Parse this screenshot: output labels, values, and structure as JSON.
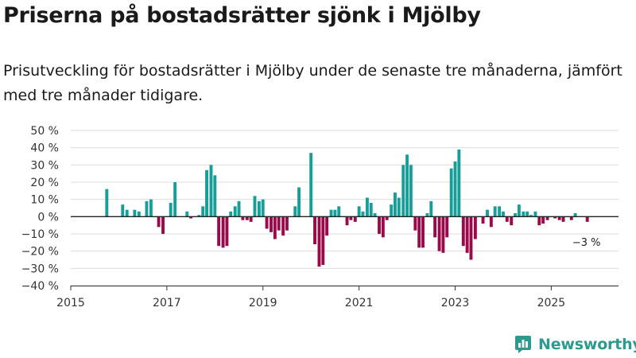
{
  "header": {
    "title": "Priserna på bostadsrätter sjönk i Mjölby",
    "subtitle": "Prisutveckling för bostadsrätter i Mjölby under de senaste tre månaderna, jämfört med tre månader tidigare."
  },
  "brand": {
    "name": "Newsworthy"
  },
  "colors": {
    "positive": "#189e98",
    "negative": "#9a0a4a",
    "zero_line": "#222222",
    "grid": "#dddddd"
  },
  "chart_data": {
    "type": "bar",
    "title": "Priserna på bostadsrätter sjönk i Mjölby",
    "ylabel": "",
    "xlabel": "",
    "ylim": [
      -40,
      50
    ],
    "y_ticks": [
      -40,
      -30,
      -20,
      -10,
      0,
      10,
      20,
      30,
      40,
      50
    ],
    "y_tick_labels": [
      "−40 %",
      "−30 %",
      "−20 %",
      "−10 %",
      "0 %",
      "10 %",
      "20 %",
      "30 %",
      "40 %",
      "50 %"
    ],
    "x_ticks": [
      2015,
      2017,
      2019,
      2021,
      2023,
      2025
    ],
    "x_tick_labels": [
      "2015",
      "2017",
      "2019",
      "2021",
      "2023",
      "2025"
    ],
    "x_range": [
      2015.0,
      2026.4
    ],
    "annotation": {
      "text": "−3 %",
      "x": 2025.75,
      "y": -3
    },
    "series": [
      {
        "name": "Prisutveckling",
        "x": [
          2015.75,
          2015.83,
          2015.92,
          2016.0,
          2016.08,
          2016.17,
          2016.25,
          2016.33,
          2016.42,
          2016.5,
          2016.58,
          2016.67,
          2016.75,
          2016.83,
          2016.92,
          2017.0,
          2017.08,
          2017.17,
          2017.25,
          2017.33,
          2017.42,
          2017.5,
          2017.58,
          2017.67,
          2017.75,
          2017.83,
          2017.92,
          2018.0,
          2018.08,
          2018.17,
          2018.25,
          2018.33,
          2018.42,
          2018.5,
          2018.58,
          2018.67,
          2018.75,
          2018.83,
          2018.92,
          2019.0,
          2019.08,
          2019.17,
          2019.25,
          2019.33,
          2019.42,
          2019.5,
          2019.58,
          2019.67,
          2019.75,
          2019.83,
          2019.92,
          2020.0,
          2020.08,
          2020.17,
          2020.25,
          2020.33,
          2020.42,
          2020.5,
          2020.58,
          2020.67,
          2020.75,
          2020.83,
          2020.92,
          2021.0,
          2021.08,
          2021.17,
          2021.25,
          2021.33,
          2021.42,
          2021.5,
          2021.58,
          2021.67,
          2021.75,
          2021.83,
          2021.92,
          2022.0,
          2022.08,
          2022.17,
          2022.25,
          2022.33,
          2022.42,
          2022.5,
          2022.58,
          2022.67,
          2022.75,
          2022.83,
          2022.92,
          2023.0,
          2023.08,
          2023.17,
          2023.25,
          2023.33,
          2023.42,
          2023.5,
          2023.58,
          2023.67,
          2023.75,
          2023.83,
          2023.92,
          2024.0,
          2024.08,
          2024.17,
          2024.25,
          2024.33,
          2024.42,
          2024.5,
          2024.58,
          2024.67,
          2024.75,
          2024.83,
          2024.92,
          2025.0,
          2025.08,
          2025.17,
          2025.25,
          2025.33,
          2025.42,
          2025.5,
          2025.58,
          2025.67,
          2025.75
        ],
        "values": [
          16,
          0,
          0,
          0,
          7,
          4,
          0,
          4,
          3,
          0,
          9,
          10,
          0,
          -6,
          -10,
          0,
          8,
          20,
          0,
          0,
          3,
          -1,
          0,
          1,
          6,
          27,
          30,
          24,
          -17,
          -18,
          -17,
          3,
          6,
          9,
          -2,
          -2,
          -3,
          12,
          9,
          10,
          -7,
          -9,
          -13,
          -8,
          -11,
          -8,
          0,
          6,
          17,
          0,
          0,
          37,
          -16,
          -29,
          -28,
          -11,
          4,
          4,
          6,
          0,
          -5,
          -2,
          -3,
          6,
          3,
          11,
          8,
          2,
          -10,
          -12,
          -2,
          7,
          14,
          11,
          30,
          36,
          30,
          -8,
          -18,
          -18,
          2,
          9,
          -12,
          -20,
          -21,
          -12,
          28,
          32,
          39,
          -17,
          -21,
          -25,
          -13,
          0,
          -4,
          4,
          -6,
          6,
          6,
          3,
          -3,
          -5,
          2,
          7,
          3,
          3,
          1,
          3,
          -5,
          -4,
          -2,
          0,
          -1,
          -2,
          -3,
          0,
          -2,
          2,
          0,
          0,
          -3
        ]
      }
    ]
  }
}
